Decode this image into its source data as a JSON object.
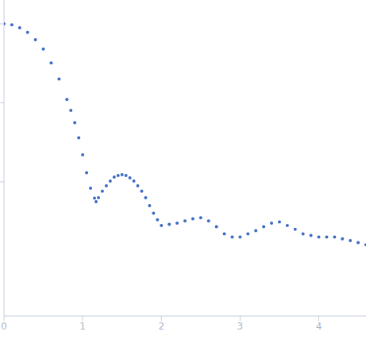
{
  "chart_data": {
    "type": "scatter",
    "x": [
      0,
      0.1,
      0.2,
      0.3,
      0.4,
      0.5,
      0.6,
      0.7,
      0.8,
      0.85,
      0.9,
      0.95,
      1.0,
      1.05,
      1.1,
      1.15,
      1.17,
      1.2,
      1.25,
      1.3,
      1.35,
      1.4,
      1.45,
      1.5,
      1.55,
      1.6,
      1.65,
      1.7,
      1.75,
      1.8,
      1.85,
      1.9,
      1.95,
      2.0,
      2.1,
      2.2,
      2.3,
      2.4,
      2.5,
      2.6,
      2.7,
      2.8,
      2.9,
      3.0,
      3.1,
      3.2,
      3.3,
      3.4,
      3.5,
      3.6,
      3.7,
      3.8,
      3.9,
      4.0,
      4.1,
      4.2,
      4.3,
      4.4,
      4.5,
      4.6
    ],
    "values": [
      1.0,
      0.97,
      0.89,
      0.78,
      0.63,
      0.48,
      0.32,
      0.2,
      0.11,
      0.08,
      0.056,
      0.036,
      0.022,
      0.013,
      0.0083,
      0.0062,
      0.0056,
      0.0063,
      0.0076,
      0.0089,
      0.0102,
      0.0115,
      0.012,
      0.0123,
      0.012,
      0.0112,
      0.0102,
      0.0089,
      0.0076,
      0.0063,
      0.005,
      0.004,
      0.0033,
      0.0028,
      0.0029,
      0.003,
      0.0032,
      0.0034,
      0.0035,
      0.0032,
      0.0027,
      0.0022,
      0.002,
      0.002,
      0.0022,
      0.0024,
      0.0027,
      0.003,
      0.0031,
      0.0028,
      0.0025,
      0.0022,
      0.0021,
      0.002,
      0.002,
      0.002,
      0.0019,
      0.0018,
      0.0017,
      0.0016
    ],
    "color": "#3d6cc4",
    "marker": "circle",
    "xlim": [
      0,
      4.6
    ],
    "xticks": [
      0,
      1,
      2,
      3,
      4
    ],
    "ylim": [
      0.0002,
      2
    ],
    "yticks": [
      0.01,
      0.1,
      1
    ],
    "log": "y",
    "tick_labels": "x",
    "grid": false
  }
}
